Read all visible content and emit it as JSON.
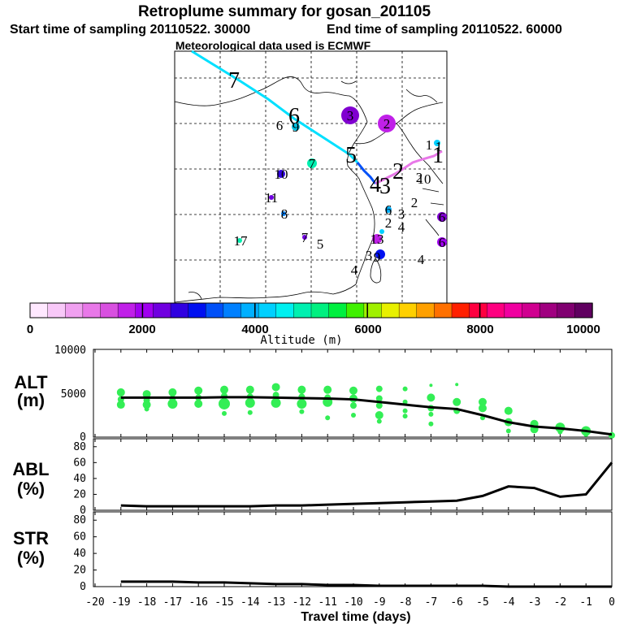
{
  "header": {
    "title": "Retroplume summary for gosan_201105",
    "start_time": "Start time of sampling 20110522. 30000",
    "end_time": "End time of sampling 20110522. 60000",
    "met_data": "Meteorological data used is ECMWF"
  },
  "colorbar": {
    "ticks": [
      "0",
      "2000",
      "4000",
      "6000",
      "8000",
      "10000"
    ],
    "label": "Altitude (m)",
    "colors": [
      "#ffe8ff",
      "#f8c8f8",
      "#f0a0f0",
      "#e878e8",
      "#d850e0",
      "#c020e8",
      "#a000f0",
      "#7000e0",
      "#3000e0",
      "#0010f0",
      "#0050f8",
      "#0080ff",
      "#00b0ff",
      "#00d0ff",
      "#00f0f0",
      "#00f0b0",
      "#00f080",
      "#00f040",
      "#40f000",
      "#a0f000",
      "#e8f000",
      "#ffd000",
      "#ffa000",
      "#ff7000",
      "#ff2000",
      "#ff0040",
      "#ff0080",
      "#f000a0",
      "#d00090",
      "#a00080",
      "#800070",
      "#600060"
    ]
  },
  "map": {
    "trajectory_labels": [
      "7",
      "6",
      "5",
      "4",
      "3",
      "2",
      "1"
    ],
    "cluster_labels": [
      {
        "t": "3",
        "c": "#8000d0"
      },
      {
        "t": "2",
        "c": "#c020e8"
      },
      {
        "t": "6",
        "c": "#e8f000"
      },
      {
        "t": "9",
        "c": "#00c0e0"
      },
      {
        "t": "1",
        "c": "#00d0ff"
      },
      {
        "t": "2",
        "c": "#e878e8"
      },
      {
        "t": "1",
        "c": "#e878e8"
      },
      {
        "t": "7",
        "c": "#00f0b0"
      },
      {
        "t": "10",
        "c": "#3000e0"
      },
      {
        "t": "10",
        "c": "#e878e8"
      },
      {
        "t": "11",
        "c": "#7000e0"
      },
      {
        "t": "2",
        "c": "#e878e8"
      },
      {
        "t": "8",
        "c": "#0080ff"
      },
      {
        "t": "6",
        "c": "#00b0ff"
      },
      {
        "t": "3",
        "c": "#c020e8"
      },
      {
        "t": "6",
        "c": "#8000d0"
      },
      {
        "t": "17",
        "c": "#00f0b0"
      },
      {
        "t": "7",
        "c": "#7000e0"
      },
      {
        "t": "5",
        "c": "#0050f8"
      },
      {
        "t": "2",
        "c": "#c020e8"
      },
      {
        "t": "4",
        "c": "#a000f0"
      },
      {
        "t": "6",
        "c": "#a000f0"
      },
      {
        "t": "13",
        "c": "#c020e8"
      },
      {
        "t": "3",
        "c": "#a000f0"
      },
      {
        "t": "9",
        "c": "#0010f0"
      },
      {
        "t": "4",
        "c": "#c020e8"
      },
      {
        "t": "4",
        "c": "#c020e8"
      }
    ]
  },
  "chart_data": [
    {
      "type": "scatter",
      "name": "ALT",
      "ylabel": "ALT (m)",
      "ylabel_line1": "ALT",
      "ylabel_line2": "(m)",
      "ylim": [
        0,
        10000
      ],
      "yticks": [
        "10000",
        "5000",
        "0"
      ],
      "xlim": [
        -20,
        0
      ],
      "mean_line": {
        "x": [
          -19,
          -18,
          -17,
          -16,
          -15,
          -14,
          -13,
          -12,
          -11,
          -10,
          -9,
          -8,
          -7,
          -6,
          -5,
          -4,
          -3,
          -2,
          -1,
          0
        ],
        "y": [
          4500,
          4500,
          4500,
          4500,
          4550,
          4550,
          4500,
          4450,
          4400,
          4300,
          4000,
          3700,
          3400,
          3200,
          2500,
          1700,
          1200,
          1000,
          700,
          300
        ]
      },
      "points": [
        {
          "x": -19,
          "y": 5100,
          "s": 5
        },
        {
          "x": -19,
          "y": 4300,
          "s": 4
        },
        {
          "x": -19,
          "y": 3700,
          "s": 5
        },
        {
          "x": -18,
          "y": 4900,
          "s": 5
        },
        {
          "x": -18,
          "y": 4200,
          "s": 4
        },
        {
          "x": -18,
          "y": 3700,
          "s": 5
        },
        {
          "x": -18,
          "y": 3200,
          "s": 3
        },
        {
          "x": -17,
          "y": 5100,
          "s": 5
        },
        {
          "x": -17,
          "y": 4400,
          "s": 4
        },
        {
          "x": -17,
          "y": 3800,
          "s": 6
        },
        {
          "x": -16,
          "y": 5300,
          "s": 5
        },
        {
          "x": -16,
          "y": 4500,
          "s": 4
        },
        {
          "x": -16,
          "y": 3800,
          "s": 5
        },
        {
          "x": -15,
          "y": 5400,
          "s": 5
        },
        {
          "x": -15,
          "y": 4700,
          "s": 4
        },
        {
          "x": -15,
          "y": 3800,
          "s": 7
        },
        {
          "x": -15,
          "y": 2700,
          "s": 3
        },
        {
          "x": -14,
          "y": 5400,
          "s": 5
        },
        {
          "x": -14,
          "y": 4600,
          "s": 4
        },
        {
          "x": -14,
          "y": 3900,
          "s": 6
        },
        {
          "x": -14,
          "y": 2800,
          "s": 3
        },
        {
          "x": -13,
          "y": 5700,
          "s": 5
        },
        {
          "x": -13,
          "y": 4800,
          "s": 4
        },
        {
          "x": -13,
          "y": 3900,
          "s": 6
        },
        {
          "x": -12,
          "y": 5400,
          "s": 5
        },
        {
          "x": -12,
          "y": 4600,
          "s": 4
        },
        {
          "x": -12,
          "y": 3800,
          "s": 6
        },
        {
          "x": -12,
          "y": 2900,
          "s": 3
        },
        {
          "x": -11,
          "y": 5400,
          "s": 5
        },
        {
          "x": -11,
          "y": 4500,
          "s": 4
        },
        {
          "x": -11,
          "y": 4000,
          "s": 6
        },
        {
          "x": -11,
          "y": 2200,
          "s": 3
        },
        {
          "x": -10,
          "y": 5300,
          "s": 5
        },
        {
          "x": -10,
          "y": 4400,
          "s": 5
        },
        {
          "x": -10,
          "y": 3600,
          "s": 4
        },
        {
          "x": -10,
          "y": 2500,
          "s": 3
        },
        {
          "x": -9,
          "y": 5500,
          "s": 4
        },
        {
          "x": -9,
          "y": 4400,
          "s": 4
        },
        {
          "x": -9,
          "y": 3600,
          "s": 4
        },
        {
          "x": -9,
          "y": 2500,
          "s": 5
        },
        {
          "x": -9,
          "y": 1800,
          "s": 3
        },
        {
          "x": -8,
          "y": 5500,
          "s": 3
        },
        {
          "x": -8,
          "y": 4000,
          "s": 3
        },
        {
          "x": -8,
          "y": 3000,
          "s": 3
        },
        {
          "x": -8,
          "y": 2400,
          "s": 3
        },
        {
          "x": -7,
          "y": 5900,
          "s": 2
        },
        {
          "x": -7,
          "y": 4500,
          "s": 5
        },
        {
          "x": -7,
          "y": 3300,
          "s": 4
        },
        {
          "x": -7,
          "y": 2600,
          "s": 3
        },
        {
          "x": -7,
          "y": 1500,
          "s": 3
        },
        {
          "x": -6,
          "y": 6000,
          "s": 2
        },
        {
          "x": -6,
          "y": 4000,
          "s": 5
        },
        {
          "x": -6,
          "y": 3000,
          "s": 4
        },
        {
          "x": -5,
          "y": 4000,
          "s": 5
        },
        {
          "x": -5,
          "y": 3300,
          "s": 5
        },
        {
          "x": -5,
          "y": 2200,
          "s": 3
        },
        {
          "x": -4,
          "y": 3000,
          "s": 5
        },
        {
          "x": -4,
          "y": 1700,
          "s": 5
        },
        {
          "x": -4,
          "y": 700,
          "s": 3
        },
        {
          "x": -3,
          "y": 1500,
          "s": 5
        },
        {
          "x": -3,
          "y": 900,
          "s": 5
        },
        {
          "x": -2,
          "y": 1100,
          "s": 6
        },
        {
          "x": -2,
          "y": 600,
          "s": 3
        },
        {
          "x": -1,
          "y": 700,
          "s": 6
        },
        {
          "x": -1,
          "y": 300,
          "s": 3
        },
        {
          "x": 0,
          "y": 200,
          "s": 4
        }
      ]
    },
    {
      "type": "line",
      "name": "ABL",
      "ylabel": "ABL (%)",
      "ylabel_line1": "ABL",
      "ylabel_line2": "(%)",
      "ylim": [
        0,
        90
      ],
      "yticks": [
        "80",
        "60",
        "40",
        "20",
        "0"
      ],
      "xlim": [
        -20,
        0
      ],
      "x": [
        -19,
        -18,
        -17,
        -16,
        -15,
        -14,
        -13,
        -12,
        -11,
        -10,
        -9,
        -8,
        -7,
        -6,
        -5,
        -4,
        -3,
        -2,
        -1,
        0
      ],
      "y": [
        6,
        5,
        5,
        5,
        5,
        5,
        6,
        6,
        7,
        8,
        9,
        10,
        11,
        12,
        18,
        30,
        28,
        17,
        20,
        60
      ]
    },
    {
      "type": "line",
      "name": "STR",
      "ylabel": "STR (%)",
      "ylabel_line1": "STR",
      "ylabel_line2": "(%)",
      "ylim": [
        0,
        90
      ],
      "yticks": [
        "80",
        "60",
        "40",
        "20",
        "0"
      ],
      "xlim": [
        -20,
        0
      ],
      "x": [
        -19,
        -18,
        -17,
        -16,
        -15,
        -14,
        -13,
        -12,
        -11,
        -10,
        -9,
        -8,
        -7,
        -6,
        -5,
        -4,
        -3,
        -2,
        -1,
        0
      ],
      "y": [
        6,
        6,
        6,
        5,
        5,
        4,
        3,
        3,
        2,
        2,
        1,
        1,
        1,
        1,
        1,
        0,
        0,
        0,
        0,
        0
      ]
    }
  ],
  "xaxis": {
    "ticks": [
      "-20",
      "-19",
      "-18",
      "-17",
      "-16",
      "-15",
      "-14",
      "-13",
      "-12",
      "-11",
      "-10",
      "-9",
      "-8",
      "-7",
      "-6",
      "-5",
      "-4",
      "-3",
      "-2",
      "-1",
      "0"
    ],
    "label": "Travel time (days)"
  },
  "colors": {
    "points": "#33ee55",
    "line": "#000000",
    "trajectory": "#00e0ff"
  }
}
